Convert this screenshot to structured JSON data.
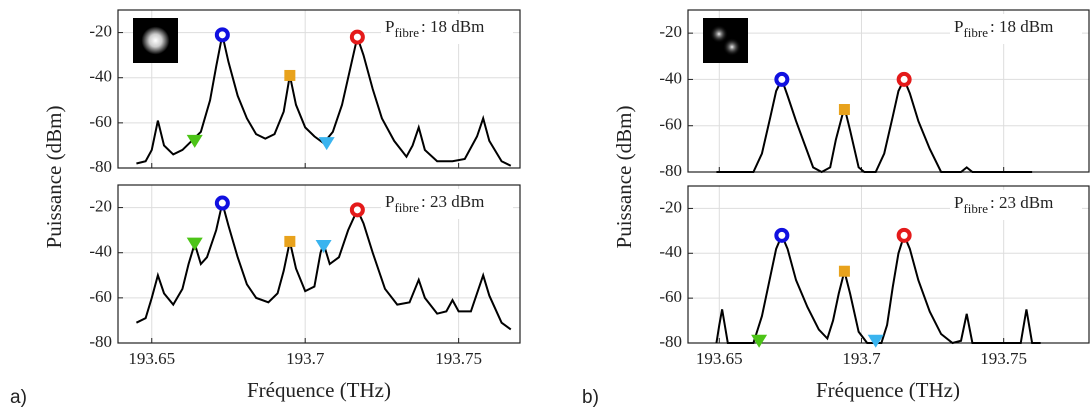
{
  "panels": [
    {
      "label": "a)",
      "ylabel": "Puissance (dBm)",
      "xlabel": "Fréquence (THz)"
    },
    {
      "label": "b)",
      "ylabel": "Puissance (dBm)",
      "xlabel": "Fréquence (THz)"
    }
  ],
  "chart_data": [
    {
      "type": "line",
      "color": "#000000",
      "grid": true,
      "xtick_labels": false,
      "xlim": [
        193.639,
        193.77
      ],
      "ylim": [
        -80,
        -10
      ],
      "xticks": [
        193.65,
        193.7,
        193.75
      ],
      "yticks": [
        -80,
        -60,
        -40,
        -20
      ],
      "annotation": {
        "text": "P",
        "subscript": "fibre",
        "suffix": ": 18 dBm"
      },
      "x": [
        193.645,
        193.648,
        193.65,
        193.652,
        193.654,
        193.657,
        193.66,
        193.663,
        193.666,
        193.669,
        193.671,
        193.673,
        193.675,
        193.678,
        193.681,
        193.684,
        193.687,
        193.69,
        193.693,
        193.695,
        193.697,
        193.7,
        193.703,
        193.706,
        193.709,
        193.712,
        193.715,
        193.717,
        193.719,
        193.722,
        193.725,
        193.729,
        193.733,
        193.735,
        193.737,
        193.739,
        193.743,
        193.748,
        193.752,
        193.756,
        193.758,
        193.76,
        193.764,
        193.767
      ],
      "values": [
        -78,
        -77,
        -72,
        -59,
        -70,
        -74,
        -72,
        -68,
        -64,
        -50,
        -35,
        -21,
        -33,
        -48,
        -58,
        -65,
        -67,
        -65,
        -55,
        -39,
        -52,
        -62,
        -66,
        -69,
        -64,
        -52,
        -34,
        -22,
        -30,
        -45,
        -58,
        -68,
        -75,
        -70,
        -62,
        -72,
        -77,
        -77,
        -76,
        -66,
        -58,
        -68,
        -77,
        -79
      ],
      "points": [
        {
          "x": 193.664,
          "y": -68,
          "color": "#4cc417",
          "marker": "triangle"
        },
        {
          "x": 193.673,
          "y": -21,
          "color": "#1010e0",
          "marker": "circle"
        },
        {
          "x": 193.695,
          "y": -39,
          "color": "#e8a21c",
          "marker": "square"
        },
        {
          "x": 193.707,
          "y": -69,
          "color": "#3ab4ef",
          "marker": "triangle"
        },
        {
          "x": 193.717,
          "y": -22,
          "color": "#e41a1a",
          "marker": "circle"
        }
      ]
    },
    {
      "type": "line",
      "color": "#000000",
      "grid": true,
      "xtick_labels": true,
      "xlim": [
        193.639,
        193.77
      ],
      "ylim": [
        -80,
        -10
      ],
      "xticks": [
        193.65,
        193.7,
        193.75
      ],
      "yticks": [
        -80,
        -60,
        -40,
        -20
      ],
      "annotation": {
        "text": "P",
        "subscript": "fibre",
        "suffix": ": 23 dBm"
      },
      "x": [
        193.645,
        193.648,
        193.65,
        193.652,
        193.654,
        193.657,
        193.66,
        193.662,
        193.664,
        193.666,
        193.668,
        193.671,
        193.673,
        193.675,
        193.678,
        193.681,
        193.684,
        193.688,
        193.691,
        193.693,
        193.695,
        193.697,
        193.7,
        193.703,
        193.705,
        193.706,
        193.708,
        193.711,
        193.714,
        193.717,
        193.719,
        193.722,
        193.726,
        193.73,
        193.734,
        193.737,
        193.739,
        193.743,
        193.746,
        193.748,
        193.75,
        193.754,
        193.756,
        193.758,
        193.76,
        193.764,
        193.767
      ],
      "values": [
        -71,
        -69,
        -60,
        -50,
        -58,
        -63,
        -56,
        -45,
        -36,
        -45,
        -42,
        -30,
        -18,
        -28,
        -42,
        -54,
        -60,
        -62,
        -58,
        -48,
        -35,
        -47,
        -57,
        -55,
        -40,
        -36,
        -45,
        -42,
        -30,
        -21,
        -27,
        -40,
        -56,
        -63,
        -62,
        -52,
        -60,
        -67,
        -66,
        -61,
        -66,
        -66,
        -58,
        -50,
        -59,
        -71,
        -74
      ],
      "points": [
        {
          "x": 193.664,
          "y": -36,
          "color": "#4cc417",
          "marker": "triangle"
        },
        {
          "x": 193.673,
          "y": -18,
          "color": "#1010e0",
          "marker": "circle"
        },
        {
          "x": 193.695,
          "y": -35,
          "color": "#e8a21c",
          "marker": "square"
        },
        {
          "x": 193.706,
          "y": -37,
          "color": "#3ab4ef",
          "marker": "triangle"
        },
        {
          "x": 193.717,
          "y": -21,
          "color": "#e41a1a",
          "marker": "circle"
        }
      ]
    },
    {
      "type": "line",
      "color": "#000000",
      "grid": true,
      "xtick_labels": false,
      "xlim": [
        193.639,
        193.78
      ],
      "ylim": [
        -80,
        -10
      ],
      "xticks": [
        193.65,
        193.7,
        193.75
      ],
      "yticks": [
        -80,
        -60,
        -40,
        -20
      ],
      "annotation": {
        "text": "P",
        "subscript": "fibre",
        "suffix": ": 18 dBm"
      },
      "x": [
        193.649,
        193.662,
        193.665,
        193.668,
        193.67,
        193.672,
        193.674,
        193.677,
        193.68,
        193.683,
        193.686,
        193.689,
        193.691,
        193.694,
        193.696,
        193.699,
        193.701,
        193.705,
        193.708,
        193.711,
        193.713,
        193.715,
        193.717,
        193.72,
        193.724,
        193.728,
        193.735,
        193.737,
        193.739,
        193.76
      ],
      "values": [
        -80,
        -80,
        -72,
        -56,
        -45,
        -40,
        -47,
        -58,
        -68,
        -78,
        -80,
        -78,
        -66,
        -52,
        -62,
        -78,
        -80,
        -80,
        -72,
        -56,
        -45,
        -40,
        -46,
        -58,
        -70,
        -80,
        -80,
        -78,
        -80,
        -80
      ],
      "points": [
        {
          "x": 193.672,
          "y": -40,
          "color": "#1010e0",
          "marker": "circle"
        },
        {
          "x": 193.694,
          "y": -53,
          "color": "#e8a21c",
          "marker": "square"
        },
        {
          "x": 193.715,
          "y": -40,
          "color": "#e41a1a",
          "marker": "circle"
        }
      ]
    },
    {
      "type": "line",
      "color": "#000000",
      "grid": true,
      "xtick_labels": true,
      "xlim": [
        193.639,
        193.78
      ],
      "ylim": [
        -80,
        -10
      ],
      "xticks": [
        193.65,
        193.7,
        193.75
      ],
      "yticks": [
        -80,
        -60,
        -40,
        -20
      ],
      "annotation": {
        "text": "P",
        "subscript": "fibre",
        "suffix": ": 23 dBm"
      },
      "x": [
        193.649,
        193.65,
        193.651,
        193.653,
        193.662,
        193.665,
        193.668,
        193.67,
        193.672,
        193.674,
        193.677,
        193.681,
        193.685,
        193.688,
        193.69,
        193.692,
        193.694,
        193.696,
        193.699,
        193.702,
        193.707,
        193.709,
        193.711,
        193.713,
        193.715,
        193.717,
        193.72,
        193.724,
        193.728,
        193.732,
        193.735,
        193.737,
        193.739,
        193.756,
        193.758,
        193.76,
        193.763
      ],
      "values": [
        -80,
        -72,
        -65,
        -80,
        -80,
        -68,
        -50,
        -38,
        -32,
        -38,
        -52,
        -64,
        -74,
        -78,
        -70,
        -58,
        -48,
        -58,
        -75,
        -80,
        -80,
        -72,
        -55,
        -40,
        -32,
        -38,
        -52,
        -66,
        -76,
        -80,
        -79,
        -67,
        -80,
        -80,
        -65,
        -80,
        -80
      ],
      "points": [
        {
          "x": 193.664,
          "y": -79,
          "color": "#4cc417",
          "marker": "triangle"
        },
        {
          "x": 193.672,
          "y": -32,
          "color": "#1010e0",
          "marker": "circle"
        },
        {
          "x": 193.694,
          "y": -48,
          "color": "#e8a21c",
          "marker": "square"
        },
        {
          "x": 193.705,
          "y": -79,
          "color": "#3ab4ef",
          "marker": "triangle"
        },
        {
          "x": 193.715,
          "y": -32,
          "color": "#e41a1a",
          "marker": "circle"
        }
      ]
    }
  ]
}
